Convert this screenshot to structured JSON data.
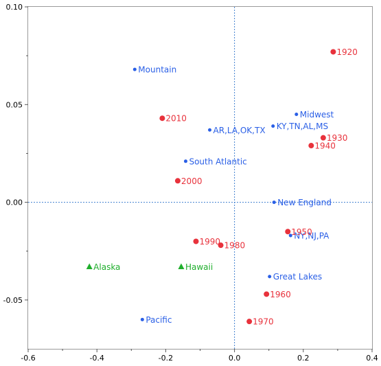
{
  "chart_data": {
    "type": "scatter",
    "xlim": [
      -0.6,
      0.4
    ],
    "ylim": [
      -0.075,
      0.1
    ],
    "x_ticks": [
      "-0.6",
      "-0.4",
      "-0.2",
      "0.0",
      "0.2",
      "0.4"
    ],
    "y_ticks": [
      "0.10",
      "0.05",
      "0.00",
      "-0.05"
    ],
    "grid": false,
    "reference_lines": {
      "x": 0,
      "y": 0
    },
    "series": [
      {
        "marker": "small-circle",
        "color": "#2a5fe6",
        "points": [
          {
            "label": "Mountain",
            "x": -0.29,
            "y": 0.068
          },
          {
            "label": "Midwest",
            "x": 0.18,
            "y": 0.045
          },
          {
            "label": "KY,TN,AL,MS",
            "x": 0.112,
            "y": 0.039
          },
          {
            "label": "AR,LA,OK,TX",
            "x": -0.072,
            "y": 0.037
          },
          {
            "label": "South Atlantic",
            "x": -0.142,
            "y": 0.021
          },
          {
            "label": "New England",
            "x": 0.115,
            "y": 0.0
          },
          {
            "label": "NY,NJ,PA",
            "x": 0.163,
            "y": -0.017
          },
          {
            "label": "Great Lakes",
            "x": 0.102,
            "y": -0.038
          },
          {
            "label": "Pacific",
            "x": -0.268,
            "y": -0.06
          }
        ]
      },
      {
        "marker": "large-circle",
        "color": "#e8323c",
        "points": [
          {
            "label": "1920",
            "x": 0.287,
            "y": 0.077
          },
          {
            "label": "2010",
            "x": -0.21,
            "y": 0.043
          },
          {
            "label": "1930",
            "x": 0.258,
            "y": 0.033
          },
          {
            "label": "1940",
            "x": 0.223,
            "y": 0.029
          },
          {
            "label": "2000",
            "x": -0.165,
            "y": 0.011
          },
          {
            "label": "1950",
            "x": 0.155,
            "y": -0.015
          },
          {
            "label": "1990",
            "x": -0.112,
            "y": -0.02
          },
          {
            "label": "1980",
            "x": -0.04,
            "y": -0.022
          },
          {
            "label": "1960",
            "x": 0.093,
            "y": -0.047
          },
          {
            "label": "1970",
            "x": 0.043,
            "y": -0.061
          }
        ]
      },
      {
        "marker": "triangle",
        "color": "#1fae2c",
        "points": [
          {
            "label": "Alaska",
            "x": -0.422,
            "y": -0.033
          },
          {
            "label": "Hawaii",
            "x": -0.155,
            "y": -0.033
          }
        ]
      }
    ]
  }
}
